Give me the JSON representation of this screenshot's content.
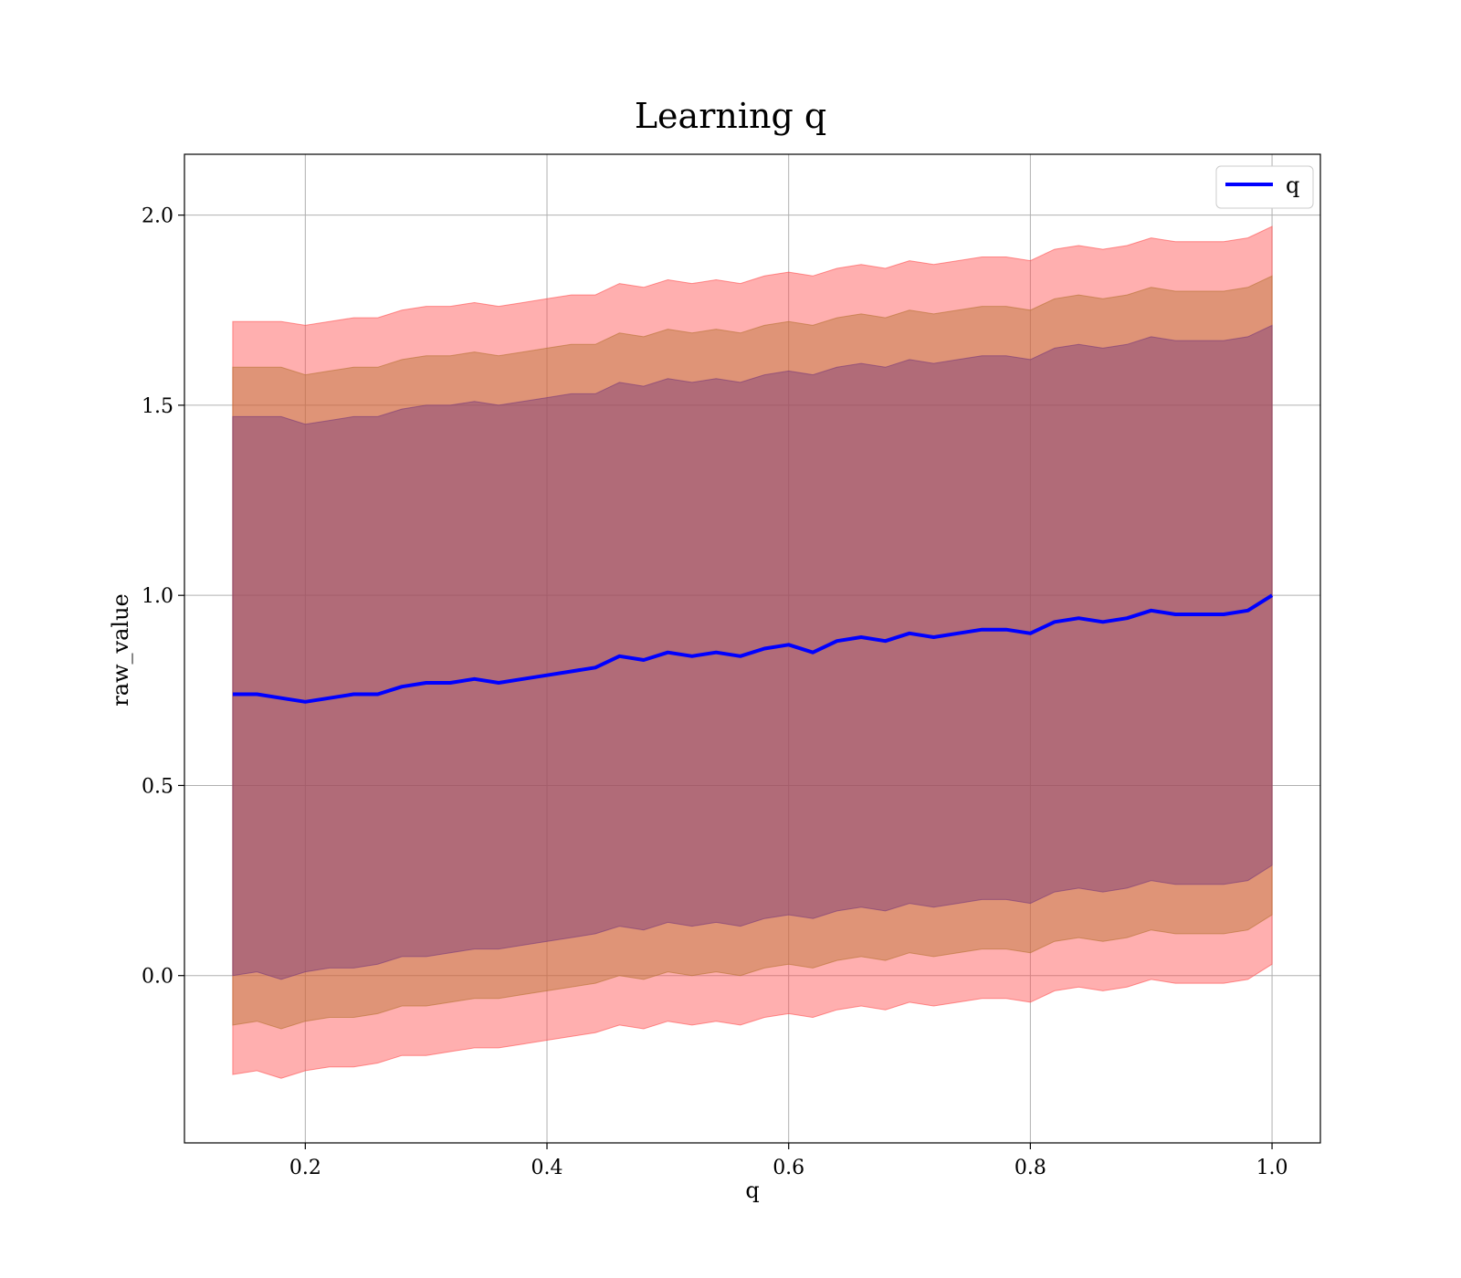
{
  "chart_data": {
    "type": "line",
    "title": "Learning q",
    "xlabel": "q",
    "ylabel": "raw_value",
    "xlim": [
      0.1,
      1.04
    ],
    "ylim": [
      -0.44,
      2.16
    ],
    "xticks": [
      "0.2",
      "0.4",
      "0.6",
      "0.8",
      "1.0"
    ],
    "yticks": [
      "0.0",
      "0.5",
      "1.0",
      "1.5",
      "2.0"
    ],
    "grid": true,
    "legend_position": "top-right",
    "series": [
      {
        "name": "q",
        "color": "#0000ff",
        "x": [
          0.14,
          0.16,
          0.18,
          0.2,
          0.22,
          0.24,
          0.26,
          0.28,
          0.3,
          0.32,
          0.34,
          0.36,
          0.38,
          0.4,
          0.42,
          0.44,
          0.46,
          0.48,
          0.5,
          0.52,
          0.54,
          0.56,
          0.58,
          0.6,
          0.62,
          0.64,
          0.66,
          0.68,
          0.7,
          0.72,
          0.74,
          0.76,
          0.78,
          0.8,
          0.82,
          0.84,
          0.86,
          0.88,
          0.9,
          0.92,
          0.94,
          0.96,
          0.98,
          1.0
        ],
        "y": [
          0.74,
          0.74,
          0.73,
          0.72,
          0.73,
          0.74,
          0.74,
          0.76,
          0.77,
          0.77,
          0.78,
          0.77,
          0.78,
          0.79,
          0.8,
          0.81,
          0.84,
          0.83,
          0.85,
          0.84,
          0.85,
          0.84,
          0.86,
          0.87,
          0.85,
          0.88,
          0.89,
          0.88,
          0.9,
          0.89,
          0.9,
          0.91,
          0.91,
          0.9,
          0.93,
          0.94,
          0.93,
          0.94,
          0.96,
          0.95,
          0.95,
          0.95,
          0.96,
          1.0
        ]
      }
    ],
    "bands": [
      {
        "color": "#ff4d4d",
        "opacity": 0.45,
        "lower": [
          -0.26,
          -0.25,
          -0.27,
          -0.25,
          -0.24,
          -0.24,
          -0.23,
          -0.21,
          -0.21,
          -0.2,
          -0.19,
          -0.19,
          -0.18,
          -0.17,
          -0.16,
          -0.15,
          -0.13,
          -0.14,
          -0.12,
          -0.13,
          -0.12,
          -0.13,
          -0.11,
          -0.1,
          -0.11,
          -0.09,
          -0.08,
          -0.09,
          -0.07,
          -0.08,
          -0.07,
          -0.06,
          -0.06,
          -0.07,
          -0.04,
          -0.03,
          -0.04,
          -0.03,
          -0.01,
          -0.02,
          -0.02,
          -0.02,
          -0.01,
          0.03
        ],
        "upper": [
          1.72,
          1.72,
          1.72,
          1.71,
          1.72,
          1.73,
          1.73,
          1.75,
          1.76,
          1.76,
          1.77,
          1.76,
          1.77,
          1.78,
          1.79,
          1.79,
          1.82,
          1.81,
          1.83,
          1.82,
          1.83,
          1.82,
          1.84,
          1.85,
          1.84,
          1.86,
          1.87,
          1.86,
          1.88,
          1.87,
          1.88,
          1.89,
          1.89,
          1.88,
          1.91,
          1.92,
          1.91,
          1.92,
          1.94,
          1.93,
          1.93,
          1.93,
          1.94,
          1.97
        ]
      },
      {
        "color": "#b87333",
        "opacity": 0.45,
        "lower": [
          -0.13,
          -0.12,
          -0.14,
          -0.12,
          -0.11,
          -0.11,
          -0.1,
          -0.08,
          -0.08,
          -0.07,
          -0.06,
          -0.06,
          -0.05,
          -0.04,
          -0.03,
          -0.02,
          0.0,
          -0.01,
          0.01,
          0.0,
          0.01,
          0.0,
          0.02,
          0.03,
          0.02,
          0.04,
          0.05,
          0.04,
          0.06,
          0.05,
          0.06,
          0.07,
          0.07,
          0.06,
          0.09,
          0.1,
          0.09,
          0.1,
          0.12,
          0.11,
          0.11,
          0.11,
          0.12,
          0.16
        ],
        "upper": [
          1.6,
          1.6,
          1.6,
          1.58,
          1.59,
          1.6,
          1.6,
          1.62,
          1.63,
          1.63,
          1.64,
          1.63,
          1.64,
          1.65,
          1.66,
          1.66,
          1.69,
          1.68,
          1.7,
          1.69,
          1.7,
          1.69,
          1.71,
          1.72,
          1.71,
          1.73,
          1.74,
          1.73,
          1.75,
          1.74,
          1.75,
          1.76,
          1.76,
          1.75,
          1.78,
          1.79,
          1.78,
          1.79,
          1.81,
          1.8,
          1.8,
          1.8,
          1.81,
          1.84
        ]
      },
      {
        "color": "#7a3a7a",
        "opacity": 0.45,
        "lower": [
          0.0,
          0.01,
          -0.01,
          0.01,
          0.02,
          0.02,
          0.03,
          0.05,
          0.05,
          0.06,
          0.07,
          0.07,
          0.08,
          0.09,
          0.1,
          0.11,
          0.13,
          0.12,
          0.14,
          0.13,
          0.14,
          0.13,
          0.15,
          0.16,
          0.15,
          0.17,
          0.18,
          0.17,
          0.19,
          0.18,
          0.19,
          0.2,
          0.2,
          0.19,
          0.22,
          0.23,
          0.22,
          0.23,
          0.25,
          0.24,
          0.24,
          0.24,
          0.25,
          0.29
        ],
        "upper": [
          1.47,
          1.47,
          1.47,
          1.45,
          1.46,
          1.47,
          1.47,
          1.49,
          1.5,
          1.5,
          1.51,
          1.5,
          1.51,
          1.52,
          1.53,
          1.53,
          1.56,
          1.55,
          1.57,
          1.56,
          1.57,
          1.56,
          1.58,
          1.59,
          1.58,
          1.6,
          1.61,
          1.6,
          1.62,
          1.61,
          1.62,
          1.63,
          1.63,
          1.62,
          1.65,
          1.66,
          1.65,
          1.66,
          1.68,
          1.67,
          1.67,
          1.67,
          1.68,
          1.71
        ]
      }
    ]
  }
}
